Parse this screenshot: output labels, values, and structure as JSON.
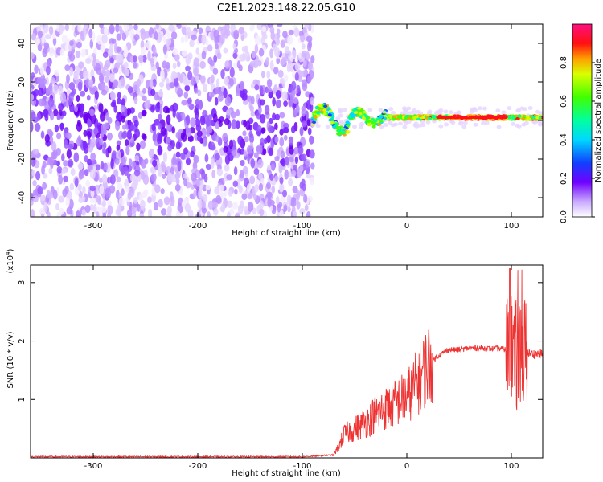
{
  "title": "C2E1.2023.148.22.05.G10",
  "chart_data": [
    {
      "type": "heatmap",
      "xlabel": "Height of straight line (km)",
      "ylabel": "Frequency (Hz)",
      "xlim": [
        -360,
        130
      ],
      "ylim": [
        -50,
        50
      ],
      "xticks": [
        -300,
        -200,
        -100,
        0,
        100
      ],
      "yticks": [
        -40,
        -20,
        0,
        20,
        40
      ],
      "colorbar": {
        "label": "Normalized spectral amplitude",
        "range": [
          0,
          1
        ],
        "ticks": [
          "0.0",
          "0.2",
          "0.4",
          "0.6",
          "0.8"
        ]
      },
      "description_of_data": {
        "noise_region_x": [
          -360,
          -90
        ],
        "signal_region_x": [
          -90,
          130
        ],
        "signal_center_frequency_hz": 1.5
      }
    },
    {
      "type": "line",
      "xlabel": "Height of straight line (km)",
      "ylabel": "SNR (10 * v/v)",
      "scale_label": "(x10",
      "scale_exp": "4",
      "scale_close": ")",
      "xlim": [
        -360,
        130
      ],
      "ylim": [
        0,
        3.3
      ],
      "xticks": [
        -300,
        -200,
        -100,
        0,
        100
      ],
      "yticks": [
        1,
        2,
        3
      ],
      "color": "#ee3333",
      "x": [
        -360,
        -300,
        -200,
        -100,
        -70,
        -65,
        -60,
        -50,
        -40,
        -30,
        -20,
        -10,
        0,
        10,
        20,
        30,
        40,
        50,
        60,
        70,
        80,
        90,
        95,
        100,
        105,
        110,
        115,
        120,
        130
      ],
      "y": [
        0.02,
        0.02,
        0.02,
        0.02,
        0.05,
        0.2,
        0.4,
        0.5,
        0.6,
        0.75,
        0.85,
        0.95,
        1.05,
        1.3,
        1.6,
        1.75,
        1.85,
        1.85,
        1.88,
        1.88,
        1.87,
        1.87,
        1.85,
        1.9,
        1.75,
        1.8,
        1.8,
        1.78,
        1.78
      ]
    }
  ]
}
